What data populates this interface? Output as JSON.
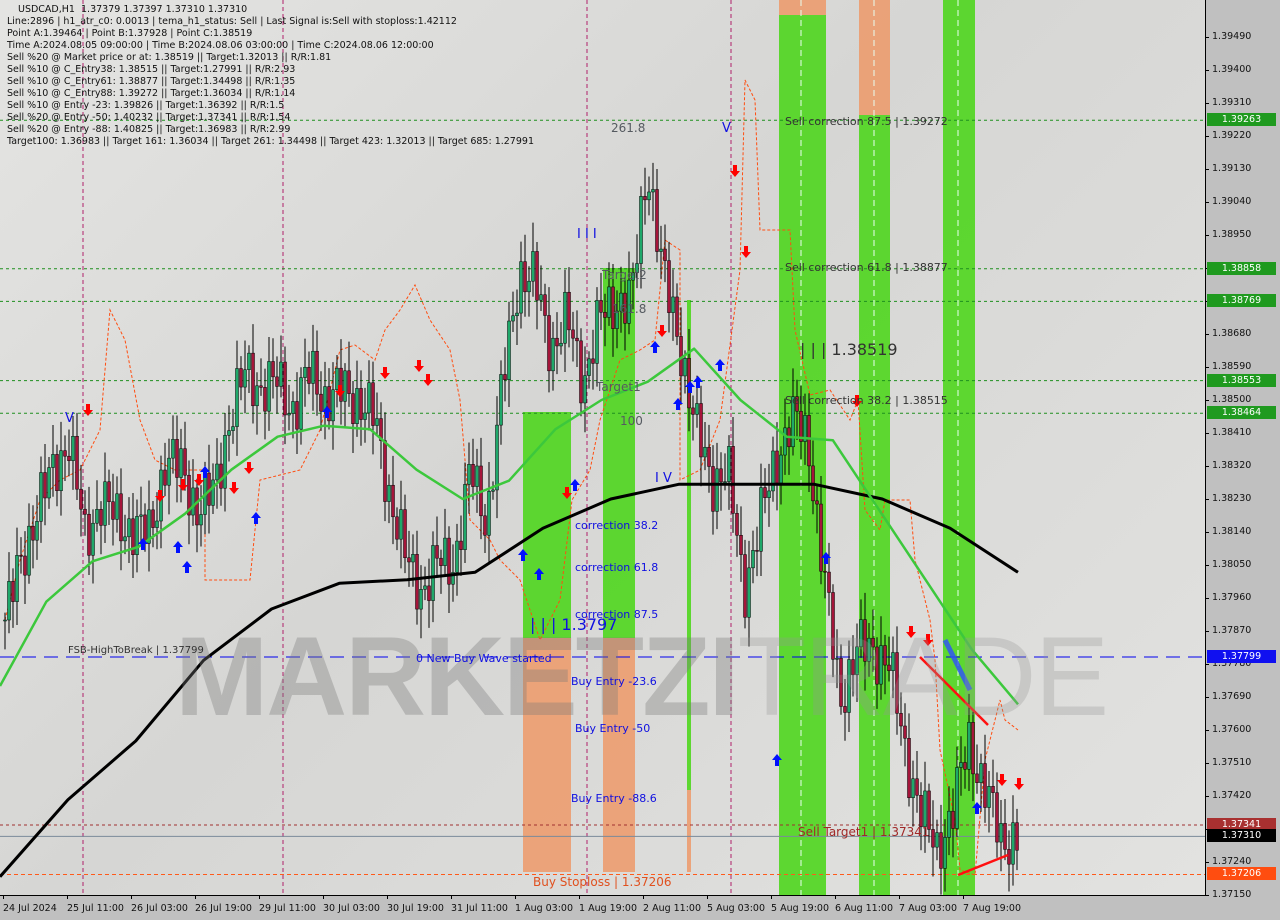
{
  "window": {
    "symbol": "USDCAD,H1",
    "ohlc": "1.37379 1.37397 1.37310 1.37310"
  },
  "info_lines": [
    "Line:2896 | h1_atr_c0: 0.0013 | tema_h1_status: Sell | Last Signal is:Sell with stoploss:1.42112",
    "Point A:1.39464 | Point B:1.37928 | Point C:1.38519",
    "Time A:2024.08.05 09:00:00 | Time B:2024.08.06 03:00:00 | Time C:2024.08.06 12:00:00",
    "Sell %20 @ Market price or at: 1.38519 || Target:1.32013 || R/R:1.81",
    "Sell %10 @ C_Entry38: 1.38515 || Target:1.27991 || R/R:2.93",
    "Sell %10 @ C_Entry61: 1.38877 || Target:1.34498 || R/R:1.35",
    "Sell %10 @ C_Entry88: 1.39272 || Target:1.36034 || R/R:1.14",
    "Sell %10 @ Entry -23: 1.39826 || Target:1.36392 || R/R:1.5",
    "Sell %20 @ Entry -50: 1.40232 || Target:1.37341 || R/R:1.54",
    "Sell %20 @ Entry -88: 1.40825 || Target:1.36983 || R/R:2.99",
    "Target100: 1.36983 || Target 161: 1.36034 || Target 261: 1.34498 || Target 423: 1.32013 || Target 685: 1.27991"
  ],
  "watermark": {
    "bold": "MARKETZI",
    "light": "TRADE"
  },
  "colors": {
    "bull": "#1fa86a",
    "bear": "#a5153a",
    "ma_fast": "#3cc83c",
    "ma_slow": "#000000",
    "zone_green": "#4fd61e",
    "zone_orange": "#f0905a",
    "level_green": "#1f8f1f",
    "level_blue": "#0000ee",
    "level_brown": "#a03030",
    "level_orange": "#ff5a1a"
  },
  "chart_data": {
    "type": "candlestick",
    "symbol": "USDCAD",
    "timeframe": "H1",
    "ylim": [
      1.3712,
      1.3958
    ],
    "y_ticks": [
      "1.39490",
      "1.39400",
      "1.39310",
      "1.39220",
      "1.39130",
      "1.39040",
      "1.38950",
      "1.38860",
      "1.38770",
      "1.38680",
      "1.38590",
      "1.38500",
      "1.38410",
      "1.38320",
      "1.38230",
      "1.38140",
      "1.38050",
      "1.37960",
      "1.37870",
      "1.37780",
      "1.37690",
      "1.37600",
      "1.37510",
      "1.37420",
      "1.37330",
      "1.37240",
      "1.37150"
    ],
    "x_ticks": [
      "24 Jul 2024",
      "25 Jul 11:00",
      "26 Jul 03:00",
      "26 Jul 19:00",
      "29 Jul 11:00",
      "30 Jul 03:00",
      "30 Jul 19:00",
      "31 Jul 11:00",
      "1 Aug 03:00",
      "1 Aug 19:00",
      "2 Aug 11:00",
      "5 Aug 03:00",
      "5 Aug 19:00",
      "6 Aug 11:00",
      "7 Aug 03:00",
      "7 Aug 19:00"
    ],
    "close_path": [
      1.379,
      1.3806,
      1.382,
      1.3831,
      1.3839,
      1.3812,
      1.3823,
      1.3817,
      1.3815,
      1.3813,
      1.3834,
      1.3831,
      1.382,
      1.3825,
      1.3845,
      1.3858,
      1.3853,
      1.3855,
      1.3847,
      1.3858,
      1.385,
      1.3853,
      1.385,
      1.3845,
      1.3823,
      1.3806,
      1.3798,
      1.3806,
      1.3806,
      1.3831,
      1.3817,
      1.3855,
      1.3885,
      1.3882,
      1.3864,
      1.3872,
      1.3855,
      1.3872,
      1.3877,
      1.3877,
      1.3915,
      1.3883,
      1.3866,
      1.3842,
      1.3828,
      1.3831,
      1.3798,
      1.3817,
      1.3834,
      1.3845,
      1.3839,
      1.3801,
      1.3768,
      1.3782,
      1.3782,
      1.3779,
      1.3755,
      1.3738,
      1.3727,
      1.3738,
      1.3757,
      1.3744,
      1.373,
      1.3731
    ],
    "ma_fast": [
      1.3772,
      1.3795,
      1.3806,
      1.381,
      1.3819,
      1.3831,
      1.384,
      1.3843,
      1.3842,
      1.3831,
      1.3823,
      1.3828,
      1.3842,
      1.385,
      1.3855,
      1.3864,
      1.385,
      1.384,
      1.3839,
      1.382,
      1.3801,
      1.3782,
      1.3767
    ],
    "ma_slow": [
      1.372,
      1.3741,
      1.3757,
      1.3779,
      1.3793,
      1.38,
      1.3801,
      1.3803,
      1.3815,
      1.3823,
      1.3827,
      1.3827,
      1.3827,
      1.3823,
      1.3815,
      1.3803
    ],
    "levels": [
      {
        "price": "1.39263",
        "kind": "green"
      },
      {
        "price": "1.38858",
        "kind": "green"
      },
      {
        "price": "1.38769",
        "kind": "green"
      },
      {
        "price": "1.38553",
        "kind": "green"
      },
      {
        "price": "1.38464",
        "kind": "green"
      },
      {
        "price": "1.37799",
        "kind": "blue"
      },
      {
        "price": "1.37341",
        "kind": "brown"
      },
      {
        "price": "1.37310",
        "kind": "current"
      },
      {
        "price": "1.37206",
        "kind": "orange"
      }
    ]
  },
  "labels": {
    "fib_261": "261.8",
    "sell_corr_875": "Sell correction 87.5 | 1.39272",
    "sell_corr_618": "Sell correction 61.8 | 1.38877",
    "sell_corr_382": "Sell correction 38.2 | 1.38515",
    "point_c": "| | | 1.38519",
    "wave_iii": "I I I",
    "wave_v": "V",
    "wave_iv": "I V",
    "wave_v_left": "V",
    "target2": "Target2",
    "fib_161": "161.8",
    "target1": "Target1",
    "fib_100": "100",
    "corr_382": "correction 38.2",
    "corr_618": "correction 61.8",
    "corr_875": "correction 87.5",
    "point_buy": "| | | 1.3797",
    "new_buy_wave": "0 New Buy Wave started",
    "fsb": "FSB-HighToBreak | 1.37799",
    "buy_entry_236": "Buy Entry -23.6",
    "buy_entry_50": "Buy Entry -50",
    "buy_entry_886": "Buy Entry -88.6",
    "sell_target1": "Sell Target1 | 1.37341",
    "buy_stoploss": "Buy Stoploss | 1.37206"
  }
}
